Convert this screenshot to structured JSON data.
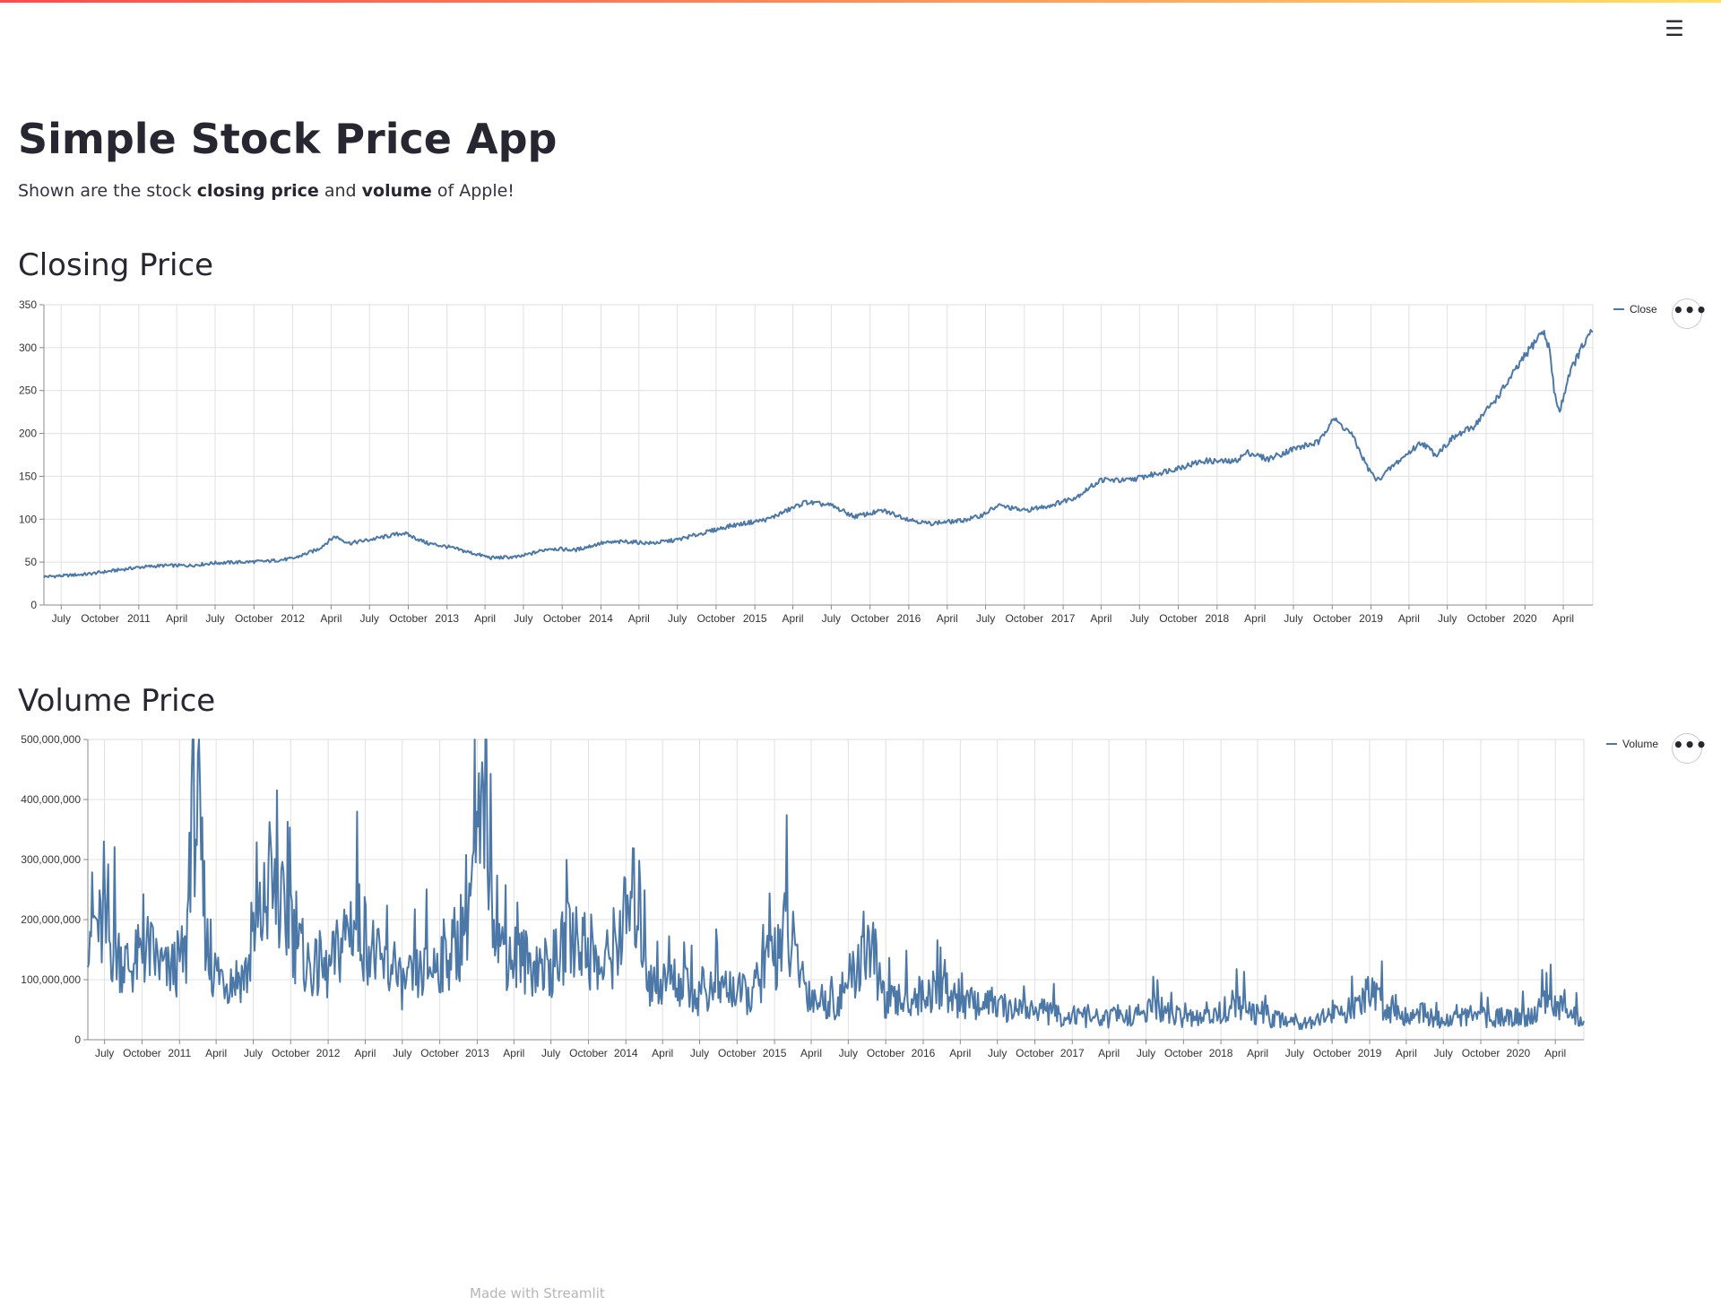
{
  "header": {
    "menu_icon": "hamburger-icon",
    "menu_glyph": "☰"
  },
  "page": {
    "title": "Simple Stock Price App",
    "subtitle_parts": {
      "prefix": "Shown are the stock ",
      "bold1": "closing price",
      "mid": " and ",
      "bold2": "volume",
      "suffix": " of Apple!"
    }
  },
  "footer": {
    "prefix": "Made with ",
    "link": "Streamlit"
  },
  "colors": {
    "line": "#4c78a8",
    "grid": "#e0e0e0",
    "accent_gradient": [
      "#ff4b4b",
      "#ffe066"
    ]
  },
  "more_button": {
    "glyph": "•••",
    "icon": "more-options-icon"
  },
  "chart_data": [
    {
      "type": "line",
      "section_title": "Closing Price",
      "series": [
        {
          "name": "Close"
        }
      ],
      "legend_label": "Close",
      "legend_position": "top-right",
      "grid": true,
      "ylim": [
        0,
        350
      ],
      "y_ticks": [
        0,
        50,
        100,
        150,
        200,
        250,
        300,
        350
      ],
      "y_tick_labels": [
        "0",
        "50",
        "100",
        "150",
        "200",
        "250",
        "300",
        "350"
      ],
      "x_range": [
        "2010-05-21",
        "2020-06-10"
      ],
      "x_tick_labels": [
        "July",
        "October",
        "2011",
        "April",
        "July",
        "October",
        "2012",
        "April",
        "July",
        "October",
        "2013",
        "April",
        "July",
        "October",
        "2014",
        "April",
        "July",
        "October",
        "2015",
        "April",
        "July",
        "October",
        "2016",
        "April",
        "July",
        "October",
        "2017",
        "April",
        "July",
        "October",
        "2018",
        "April",
        "July",
        "October",
        "2019",
        "April",
        "July",
        "October",
        "2020",
        "April"
      ],
      "x": [
        "2010-05-21",
        "2010-07-01",
        "2010-09-01",
        "2010-11-01",
        "2011-01-01",
        "2011-03-01",
        "2011-05-01",
        "2011-07-01",
        "2011-09-01",
        "2011-11-01",
        "2012-01-01",
        "2012-03-01",
        "2012-04-10",
        "2012-05-15",
        "2012-07-01",
        "2012-09-20",
        "2012-11-15",
        "2013-01-01",
        "2013-04-15",
        "2013-06-20",
        "2013-09-01",
        "2013-11-01",
        "2014-01-01",
        "2014-03-01",
        "2014-05-01",
        "2014-07-01",
        "2014-09-01",
        "2014-11-01",
        "2015-02-01",
        "2015-05-01",
        "2015-07-01",
        "2015-08-25",
        "2015-11-01",
        "2016-01-01",
        "2016-02-15",
        "2016-05-01",
        "2016-06-15",
        "2016-08-01",
        "2016-10-01",
        "2016-12-01",
        "2017-02-01",
        "2017-04-01",
        "2017-06-01",
        "2017-08-01",
        "2017-10-01",
        "2017-12-01",
        "2018-02-10",
        "2018-03-15",
        "2018-05-01",
        "2018-07-01",
        "2018-09-01",
        "2018-10-01",
        "2018-11-15",
        "2018-12-24",
        "2019-01-15",
        "2019-03-01",
        "2019-05-01",
        "2019-06-03",
        "2019-07-15",
        "2019-09-01",
        "2019-11-01",
        "2020-01-01",
        "2020-02-12",
        "2020-02-28",
        "2020-03-10",
        "2020-03-23",
        "2020-04-15",
        "2020-05-15",
        "2020-06-10"
      ],
      "values": [
        33,
        34,
        36,
        40,
        44,
        46,
        46,
        49,
        50,
        51,
        54,
        65,
        80,
        72,
        76,
        84,
        72,
        68,
        55,
        56,
        66,
        64,
        72,
        74,
        72,
        76,
        84,
        92,
        100,
        120,
        116,
        103,
        110,
        100,
        95,
        98,
        103,
        116,
        110,
        116,
        126,
        146,
        145,
        152,
        160,
        168,
        167,
        178,
        170,
        182,
        190,
        218,
        200,
        160,
        145,
        165,
        190,
        175,
        195,
        208,
        245,
        290,
        320,
        300,
        250,
        224,
        270,
        300,
        320
      ]
    },
    {
      "type": "line",
      "section_title": "Volume Price",
      "series": [
        {
          "name": "Volume"
        }
      ],
      "legend_label": "Volume",
      "legend_position": "top-right",
      "grid": true,
      "ylim": [
        0,
        500000000
      ],
      "y_ticks": [
        0,
        100000000,
        200000000,
        300000000,
        400000000,
        500000000
      ],
      "y_tick_labels": [
        "0",
        "100,000,000",
        "200,000,000",
        "300,000,000",
        "400,000,000",
        "500,000,000"
      ],
      "x_range": [
        "2010-05-21",
        "2020-06-10"
      ],
      "x_tick_labels": [
        "July",
        "October",
        "2011",
        "April",
        "July",
        "October",
        "2012",
        "April",
        "July",
        "October",
        "2013",
        "April",
        "July",
        "October",
        "2014",
        "April",
        "July",
        "October",
        "2015",
        "April",
        "July",
        "October",
        "2016",
        "April",
        "July",
        "October",
        "2017",
        "April",
        "July",
        "October",
        "2018",
        "April",
        "July",
        "October",
        "2019",
        "April",
        "July",
        "October",
        "2020",
        "April"
      ],
      "x": [
        "2010-05-21",
        "2010-06-20",
        "2010-07-15",
        "2010-09-01",
        "2010-10-15",
        "2010-12-01",
        "2011-01-18",
        "2011-02-01",
        "2011-03-15",
        "2011-05-01",
        "2011-06-15",
        "2011-08-09",
        "2011-10-01",
        "2011-11-15",
        "2012-01-01",
        "2012-02-28",
        "2012-04-05",
        "2012-05-01",
        "2012-07-01",
        "2012-09-10",
        "2012-11-15",
        "2013-01-24",
        "2013-03-01",
        "2013-05-01",
        "2013-07-01",
        "2013-09-01",
        "2013-11-01",
        "2014-01-28",
        "2014-03-01",
        "2014-05-01",
        "2014-07-01",
        "2014-09-01",
        "2014-11-01",
        "2015-01-28",
        "2015-04-01",
        "2015-06-01",
        "2015-08-24",
        "2015-10-01",
        "2015-12-01",
        "2016-02-01",
        "2016-04-01",
        "2016-06-01",
        "2016-08-01",
        "2016-10-01",
        "2016-12-01",
        "2017-02-01",
        "2017-04-01",
        "2017-06-01",
        "2017-08-01",
        "2017-10-01",
        "2017-12-01",
        "2018-02-01",
        "2018-04-01",
        "2018-06-01",
        "2018-08-01",
        "2018-10-01",
        "2018-12-01",
        "2019-01-03",
        "2019-03-01",
        "2019-05-01",
        "2019-07-01",
        "2019-09-01",
        "2019-11-01",
        "2020-01-01",
        "2020-02-01",
        "2020-03-01",
        "2020-03-16",
        "2020-04-01",
        "2020-05-01",
        "2020-06-10"
      ],
      "values": [
        210000000,
        180000000,
        160000000,
        120000000,
        150000000,
        110000000,
        140000000,
        470000000,
        120000000,
        100000000,
        110000000,
        250000000,
        180000000,
        120000000,
        110000000,
        200000000,
        170000000,
        130000000,
        90000000,
        120000000,
        160000000,
        370000000,
        150000000,
        130000000,
        120000000,
        180000000,
        110000000,
        240000000,
        90000000,
        100000000,
        70000000,
        90000000,
        70000000,
        180000000,
        70000000,
        60000000,
        160000000,
        60000000,
        70000000,
        80000000,
        60000000,
        60000000,
        50000000,
        50000000,
        40000000,
        35000000,
        35000000,
        40000000,
        50000000,
        35000000,
        35000000,
        60000000,
        40000000,
        35000000,
        30000000,
        45000000,
        50000000,
        80000000,
        40000000,
        45000000,
        30000000,
        40000000,
        35000000,
        40000000,
        35000000,
        60000000,
        100000000,
        60000000,
        40000000,
        35000000
      ]
    }
  ]
}
